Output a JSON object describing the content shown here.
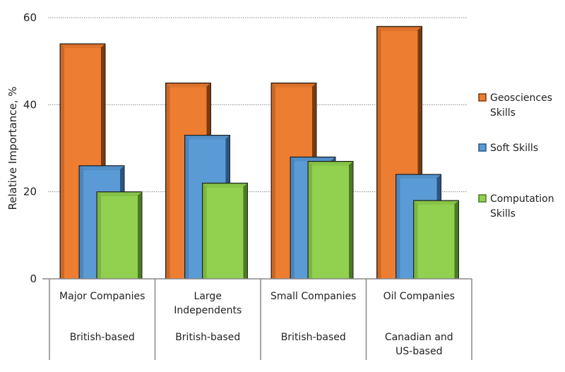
{
  "chart_data": {
    "type": "bar",
    "title": "",
    "xlabel": "",
    "ylabel": "Relative Importance, %",
    "ylim": [
      0,
      60
    ],
    "yticks": [
      "0",
      "20",
      "40",
      "60"
    ],
    "grid": true,
    "legend_position": "right",
    "categories": [
      {
        "name": [
          "Major Companies"
        ],
        "region": [
          "British-based"
        ]
      },
      {
        "name": [
          "Large",
          "Independents"
        ],
        "region": [
          "British-based"
        ]
      },
      {
        "name": [
          "Small Companies"
        ],
        "region": [
          "British-based"
        ]
      },
      {
        "name": [
          "Oil Companies"
        ],
        "region": [
          "Canadian and",
          "US-based"
        ]
      }
    ],
    "series": [
      {
        "name": [
          "Geosciences",
          "Skills"
        ],
        "color": "#ED7D31",
        "dark": "#7a3a0d",
        "values": [
          54,
          45,
          45,
          58
        ]
      },
      {
        "name": [
          "Soft Skills"
        ],
        "color": "#5B9BD5",
        "dark": "#2a5581",
        "values": [
          26,
          33,
          28,
          24
        ]
      },
      {
        "name": [
          "Computation",
          "Skills"
        ],
        "color": "#92D050",
        "dark": "#4a7a22",
        "values": [
          20,
          22,
          27,
          18
        ]
      }
    ]
  }
}
